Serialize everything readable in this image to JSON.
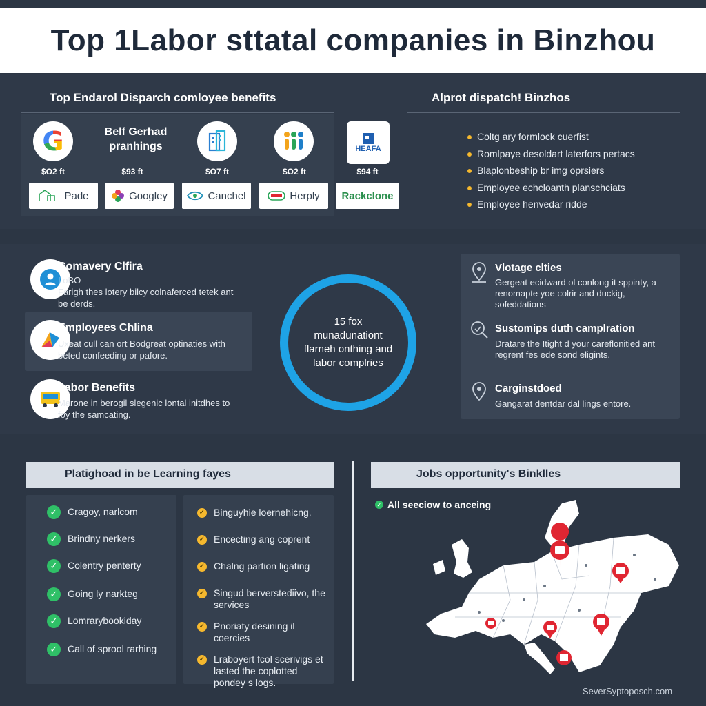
{
  "title": "Top 1Labor sttatal companies in Binzhou",
  "benefits_panel": {
    "heading": "Top Endarol Disparch comloyee benefits",
    "company_sub": "Belf Gerhad pranhings",
    "prices": [
      "$O2 ft",
      "$93 ft",
      "$O7 ft",
      "$O2 ft",
      "$94 ft"
    ],
    "logo_caption": "HEAFA",
    "brands": [
      "Pade",
      "Googley",
      "Canchel",
      "Herply",
      "Rackclone"
    ]
  },
  "dispatch_panel": {
    "heading": "Alprot dispatch! Binzhos",
    "items": [
      "Coltg ary formlock cuerfist",
      "Romlpaye desoldart laterfors pertacs",
      "Blaplonbeship br img oprsiers",
      "Employee echcloanth planschciats",
      "Employee henvedar ridde"
    ]
  },
  "features_left": [
    {
      "title": "Comavery Clfira",
      "subtitle": "LoBO",
      "text": "Farigh thes lotery bilcy colnaferced tetek ant be derds."
    },
    {
      "title": "Employees Chlina",
      "text": "Uxeat cull can ort Bodgreat optinaties with beted confeeding or pafore."
    },
    {
      "title": "Labor Benefits",
      "text": "Marone in berogil slegenic lontal initdhes to foy the samcating."
    }
  ],
  "ring_text": "15 fox munadunationt flarneh onthing and labor complries",
  "features_right": [
    {
      "title": "Vlotage clties",
      "text": "Gergeat ecidward ol conlong it sppinty, a renomapte yoe colrir and duckig, sofeddations"
    },
    {
      "title": "Sustomips duth camplration",
      "text": "Dratare the Itight d your careflonitied ant regrent fes ede sond eligints."
    },
    {
      "title": "Carginstdoed",
      "text": "Gangarat dentdar dal lings entore."
    }
  ],
  "learning": {
    "heading": "Platighoad in be Learning fayes",
    "left_items": [
      "Cragoy, narlcom",
      "Brindny nerkers",
      "Colentry penterty",
      "Going ly narkteg",
      "Lomrarybookiday",
      "Call of sprool rarhing"
    ],
    "right_items": [
      "Binguyhie loernehicng.",
      "Encecting ang coprent",
      "Chalng partion ligating",
      "Singud berverstediivo, the services",
      "Pnoriaty desining il coercies",
      "Lraboyert fcol scerivigs et lasted the coplotted pondey s logs."
    ]
  },
  "jobs": {
    "heading": "Jobs opportunity's Binklles",
    "subheading": "All seeciow to anceing"
  },
  "footer": "SeverSyptoposch.com",
  "colors": {
    "accent_blue": "#1ea3e6",
    "check_green": "#2fc067",
    "bullet_yellow": "#f5b82e",
    "pin_red": "#e02632",
    "panel": "#35404f"
  }
}
